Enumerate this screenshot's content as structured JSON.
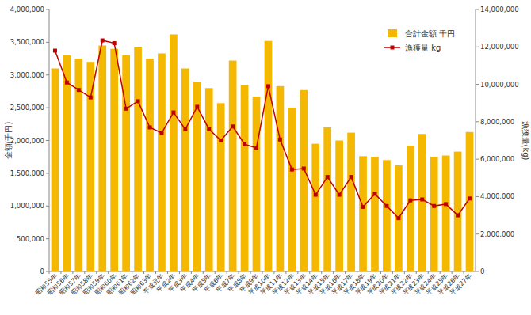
{
  "chart_data": {
    "type": "bar",
    "categories": [
      "昭和55年",
      "昭和56年",
      "昭和57年",
      "昭和58年",
      "昭和59年",
      "昭和60年",
      "昭和61年",
      "昭和62年",
      "昭和63年",
      "平成元年",
      "平成2年",
      "平成3年",
      "平成4年",
      "平成5年",
      "平成6年",
      "平成7年",
      "平成8年",
      "平成9年",
      "平成10年",
      "平成11年",
      "平成12年",
      "平成13年",
      "平成14年",
      "平成15年",
      "平成16年",
      "平成17年",
      "平成18年",
      "平成19年",
      "平成20年",
      "平成21年",
      "平成22年",
      "平成23年",
      "平成24年",
      "平成25年",
      "平成26年",
      "平成27年"
    ],
    "series": [
      {
        "name": "合計金額 千円",
        "type": "bar",
        "color": "#f5b800",
        "values": [
          3100000,
          3300000,
          3250000,
          3200000,
          3450000,
          3400000,
          3300000,
          3430000,
          3250000,
          3330000,
          3620000,
          3100000,
          2900000,
          2800000,
          2570000,
          3220000,
          2850000,
          2670000,
          3520000,
          2830000,
          2500000,
          2770000,
          1950000,
          2200000,
          2000000,
          2120000,
          1760000,
          1750000,
          1700000,
          1620000,
          1920000,
          2100000,
          1750000,
          1770000,
          1830000,
          2130000
        ]
      },
      {
        "name": "漁獲量 kg",
        "type": "line",
        "axis": "y2",
        "color": "#c00000",
        "marker": "square",
        "values": [
          11800000,
          10100000,
          9700000,
          9300000,
          12350000,
          12200000,
          8700000,
          9100000,
          7700000,
          7400000,
          8500000,
          7600000,
          8800000,
          7600000,
          7000000,
          7750000,
          6800000,
          6600000,
          9900000,
          7050000,
          5450000,
          5500000,
          4100000,
          5050000,
          4100000,
          5050000,
          3450000,
          4150000,
          3500000,
          2850000,
          3800000,
          3850000,
          3500000,
          3600000,
          3000000,
          3900000
        ]
      }
    ],
    "y_label": "金額(千円)",
    "y2_label": "漁獲量(kg)",
    "ylim": [
      0,
      4000000
    ],
    "yticks": [
      0,
      {
        "value": 500000,
        "label": "500,000"
      },
      {
        "value": 1000000,
        "label": "1,000,000"
      },
      {
        "value": 1500000,
        "label": "1,500,000"
      },
      {
        "value": 2000000,
        "label": "2,000,000"
      },
      {
        "value": 2500000,
        "label": "2,500,000"
      },
      {
        "value": 3000000,
        "label": "3,000,000"
      },
      {
        "value": 3500000,
        "label": "3,500,000"
      },
      {
        "value": 4000000,
        "label": "4,000,000"
      }
    ],
    "y2lim": [
      0,
      14000000
    ],
    "y2ticks": [
      0,
      {
        "value": 2000000,
        "label": "2,000,000"
      },
      {
        "value": 4000000,
        "label": "4,000,000"
      },
      {
        "value": 6000000,
        "label": "6,000,000"
      },
      {
        "value": 8000000,
        "label": "8,000,000"
      },
      {
        "value": 10000000,
        "label": "10,000,000"
      },
      {
        "value": 12000000,
        "label": "12,000,000"
      },
      {
        "value": 14000000,
        "label": "14,000,000"
      }
    ],
    "grid": false,
    "legend": "top-right"
  }
}
